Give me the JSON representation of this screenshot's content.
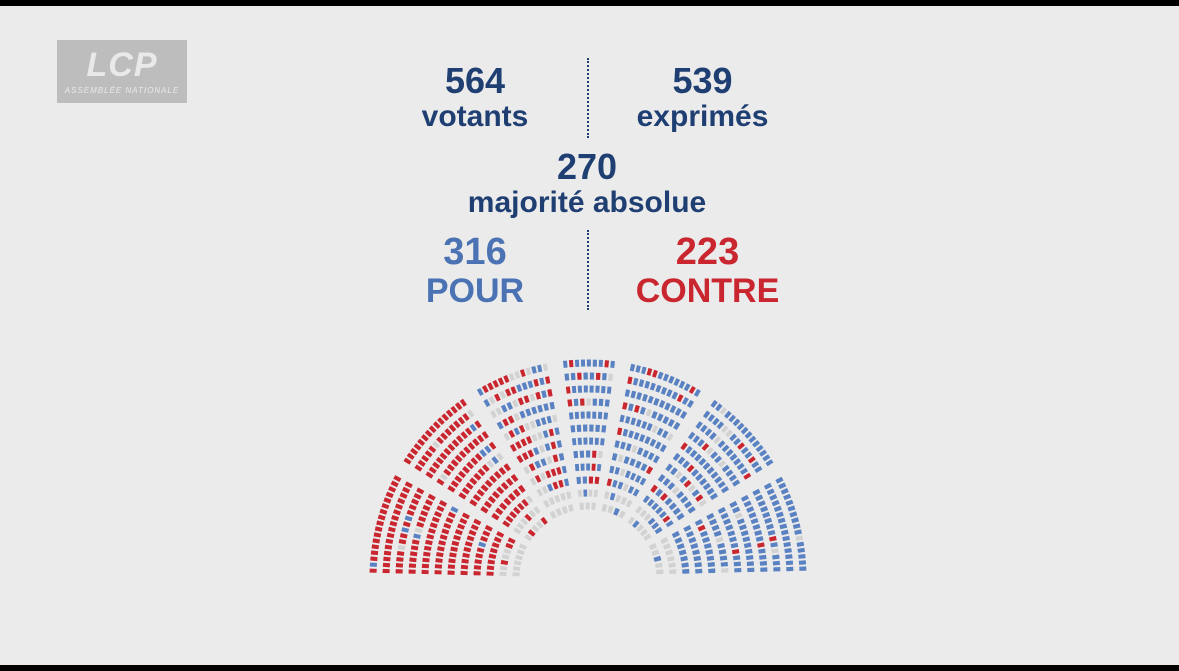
{
  "logo": {
    "main": "LCP",
    "sub": "ASSEMBLÉE NATIONALE"
  },
  "stats": {
    "votants": {
      "value": "564",
      "label": "votants"
    },
    "exprimes": {
      "value": "539",
      "label": "exprimés"
    },
    "majorite": {
      "value": "270",
      "label": "majorité absolue"
    },
    "pour": {
      "value": "316",
      "label": "POUR"
    },
    "contre": {
      "value": "223",
      "label": "CONTRE"
    }
  },
  "colors": {
    "pour": "#5a82c2",
    "contre": "#c9262f",
    "neutral": "#d2d2d2",
    "text_dark": "#1f3f73"
  },
  "hemicycle": {
    "description_free": true,
    "totals": {
      "pour": 316,
      "contre": 223,
      "abstention_or_absent": 25
    }
  }
}
